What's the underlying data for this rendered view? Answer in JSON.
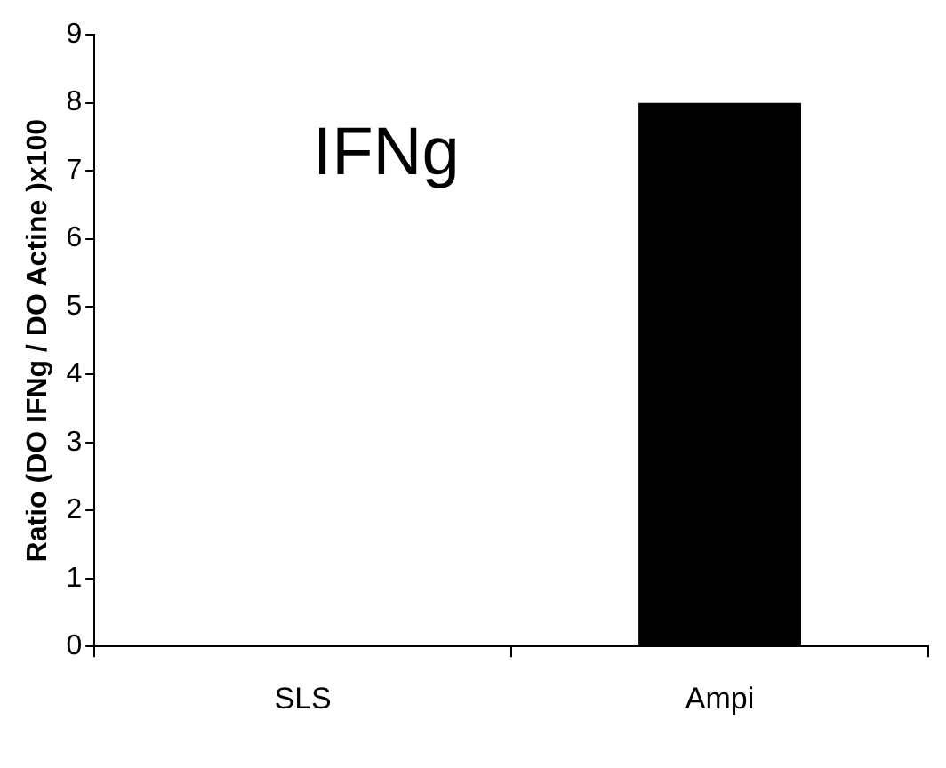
{
  "chart_data": {
    "type": "bar",
    "ylabel": "Ratio (DO IFNg / DO Actine )x100",
    "categories": [
      "SLS",
      "Ampi"
    ],
    "values": [
      0,
      8
    ],
    "color": "#000000",
    "ylim": [
      0,
      9
    ],
    "yticks": [
      0,
      1,
      2,
      3,
      4,
      5,
      6,
      7,
      8,
      9
    ],
    "grid": false,
    "legend": false,
    "annotations": [
      "IFNg"
    ]
  }
}
